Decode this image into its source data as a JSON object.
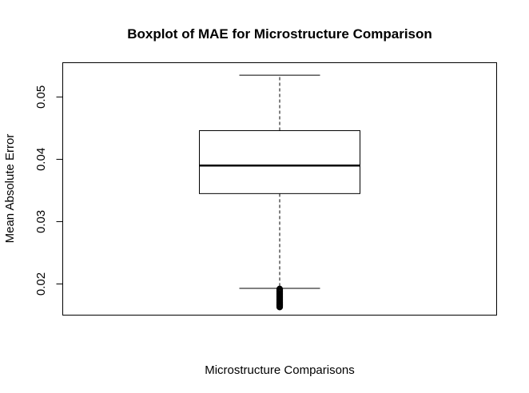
{
  "chart_data": {
    "type": "boxplot",
    "title": "Boxplot of MAE for Microstructure Comparison",
    "xlabel": "Microstructure Comparisons",
    "ylabel": "Mean Absolute Error",
    "ylim": [
      0.015,
      0.0555
    ],
    "yticks": [
      0.02,
      0.03,
      0.04,
      0.05
    ],
    "ytick_labels": [
      "0.02",
      "0.03",
      "0.04",
      "0.05"
    ],
    "grid": false,
    "legend": "none",
    "colors": {
      "box_fill": "#ffffff",
      "stroke": "#000000",
      "outlier": "#000000"
    },
    "box": {
      "whisker_low": 0.0193,
      "q1": 0.0345,
      "median": 0.039,
      "q3": 0.0446,
      "whisker_high": 0.0535
    },
    "outliers": [
      0.0192,
      0.0191,
      0.019,
      0.0189,
      0.0188,
      0.0187,
      0.0186,
      0.0185,
      0.0184,
      0.0183,
      0.0182,
      0.0181,
      0.018,
      0.0179,
      0.0178,
      0.0177,
      0.0176,
      0.0175,
      0.0174,
      0.0173,
      0.0172,
      0.0171,
      0.017,
      0.0169,
      0.0168,
      0.0167,
      0.0166,
      0.0165,
      0.0164,
      0.0163
    ]
  }
}
